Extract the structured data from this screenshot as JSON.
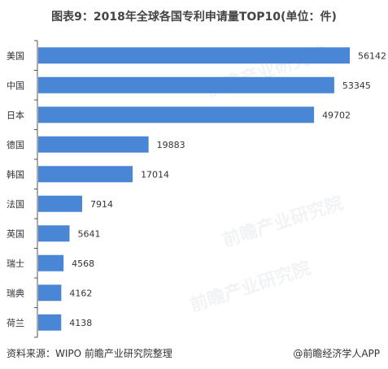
{
  "header": {
    "title": "图表9：2018年全球各国专利申请量TOP10(单位：件)"
  },
  "footer": {
    "source": "资料来源：WIPO 前瞻产业研究院整理",
    "brand": "@前瞻经济学人APP"
  },
  "watermark": {
    "text": "前瞻产业研究院"
  },
  "colors": {
    "bar": "#4a86d6",
    "axis": "#555555",
    "text": "#333333"
  },
  "chart_data": {
    "type": "bar",
    "orientation": "horizontal",
    "title": "图表9：2018年全球各国专利申请量TOP10(单位：件)",
    "categories": [
      "美国",
      "中国",
      "日本",
      "德国",
      "韩国",
      "法国",
      "英国",
      "瑞士",
      "瑞典",
      "荷兰"
    ],
    "values": [
      56142,
      53345,
      49702,
      19883,
      17014,
      7914,
      5641,
      4568,
      4162,
      4138
    ],
    "xlim": [
      0,
      57000
    ],
    "grid": false,
    "legend": "none",
    "data_labels": true
  }
}
